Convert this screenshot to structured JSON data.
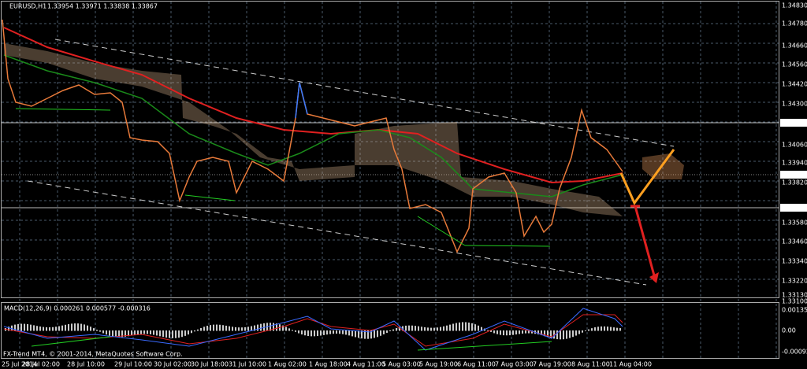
{
  "header": {
    "title": "EURUSD,H1",
    "quote": "1.33954 1.33971 1.33838 1.33867"
  },
  "price_axis": [
    "1.34830",
    "1.34780",
    "1.34660",
    "1.34560",
    "1.34420",
    "1.34300",
    "1.34189",
    "1.34060",
    "1.33940",
    "1.33867",
    "1.33820",
    "1.33670",
    "1.33580",
    "1.33460",
    "1.33340",
    "1.33220",
    "1.33130",
    "1.33100"
  ],
  "macd": {
    "label": "MACD(12,26,9) 0.000261 0.000577 -0.000316",
    "axis": [
      "0.001352",
      "0.00",
      "-0.000923"
    ]
  },
  "footer": "FX-Trend MT4, © 2001-2014, MetaQuotes Software Corp.",
  "time_axis": [
    "25 Jul 2014",
    "28 Jul 02:00",
    "28 Jul 10:00",
    "29 Jul 10:00",
    "30 Jul 02:00",
    "30 Jul 18:00",
    "31 Jul 10:00",
    "1 Aug 02:00",
    "1 Aug 18:00",
    "4 Aug 11:00",
    "5 Aug 03:00",
    "5 Aug 19:00",
    "6 Aug 11:00",
    "7 Aug 03:00",
    "7 Aug 19:00",
    "8 Aug 11:00",
    "11 Aug 04:00"
  ]
}
